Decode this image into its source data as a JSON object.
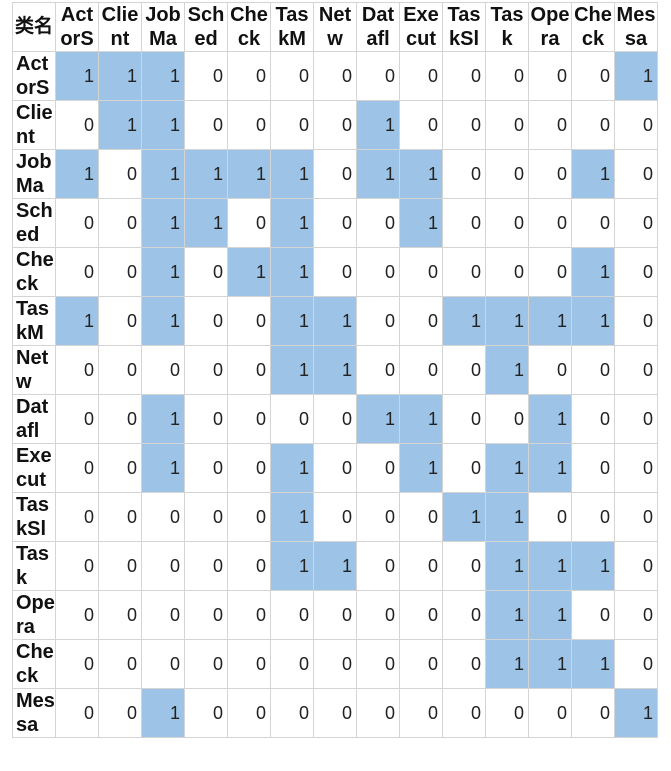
{
  "corner_label": "类名",
  "columns": [
    "ActorS",
    "Client",
    "JobMa",
    "Sched",
    "Check",
    "TaskM",
    "Netw",
    "Datafl",
    "Execut",
    "TaskSl",
    "Task",
    "Opera",
    "Check",
    "Messa"
  ],
  "rows": [
    {
      "label": "ActorS",
      "values": [
        "1",
        "1",
        "1",
        "0",
        "0",
        "0",
        "0",
        "0",
        "0",
        "0",
        "0",
        "0",
        "0",
        "1"
      ]
    },
    {
      "label": "Client",
      "values": [
        "0",
        "1",
        "1",
        "0",
        "0",
        "0",
        "0",
        "1",
        "0",
        "0",
        "0",
        "0",
        "0",
        "0"
      ]
    },
    {
      "label": "JobMa",
      "values": [
        "1",
        "0",
        "1",
        "1",
        "1",
        "1",
        "0",
        "1",
        "1",
        "0",
        "0",
        "0",
        "1",
        "0"
      ]
    },
    {
      "label": "Sched",
      "values": [
        "0",
        "0",
        "1",
        "1",
        "0",
        "1",
        "0",
        "0",
        "1",
        "0",
        "0",
        "0",
        "0",
        "0"
      ]
    },
    {
      "label": "Check",
      "values": [
        "0",
        "0",
        "1",
        "0",
        "1",
        "1",
        "0",
        "0",
        "0",
        "0",
        "0",
        "0",
        "1",
        "0"
      ]
    },
    {
      "label": "TaskM",
      "values": [
        "1",
        "0",
        "1",
        "0",
        "0",
        "1",
        "1",
        "0",
        "0",
        "1",
        "1",
        "1",
        "1",
        "0"
      ]
    },
    {
      "label": "Netw",
      "values": [
        "0",
        "0",
        "0",
        "0",
        "0",
        "1",
        "1",
        "0",
        "0",
        "0",
        "1",
        "0",
        "0",
        "0"
      ]
    },
    {
      "label": "Datafl",
      "values": [
        "0",
        "0",
        "1",
        "0",
        "0",
        "0",
        "0",
        "1",
        "1",
        "0",
        "0",
        "1",
        "0",
        "0"
      ]
    },
    {
      "label": "Execut",
      "values": [
        "0",
        "0",
        "1",
        "0",
        "0",
        "1",
        "0",
        "0",
        "1",
        "0",
        "1",
        "1",
        "0",
        "0"
      ]
    },
    {
      "label": "TaskSl",
      "values": [
        "0",
        "0",
        "0",
        "0",
        "0",
        "1",
        "0",
        "0",
        "0",
        "1",
        "1",
        "0",
        "0",
        "0"
      ]
    },
    {
      "label": "Task",
      "values": [
        "0",
        "0",
        "0",
        "0",
        "0",
        "1",
        "1",
        "0",
        "0",
        "0",
        "1",
        "1",
        "1",
        "0"
      ]
    },
    {
      "label": "Opera",
      "values": [
        "0",
        "0",
        "0",
        "0",
        "0",
        "0",
        "0",
        "0",
        "0",
        "0",
        "1",
        "1",
        "0",
        "0"
      ]
    },
    {
      "label": "Check",
      "values": [
        "0",
        "0",
        "0",
        "0",
        "0",
        "0",
        "0",
        "0",
        "0",
        "0",
        "1",
        "1",
        "1",
        "0"
      ]
    },
    {
      "label": "Messa",
      "values": [
        "0",
        "0",
        "1",
        "0",
        "0",
        "0",
        "0",
        "0",
        "0",
        "0",
        "0",
        "0",
        "0",
        "1"
      ]
    }
  ],
  "highlight_color": "#9dc3e6"
}
